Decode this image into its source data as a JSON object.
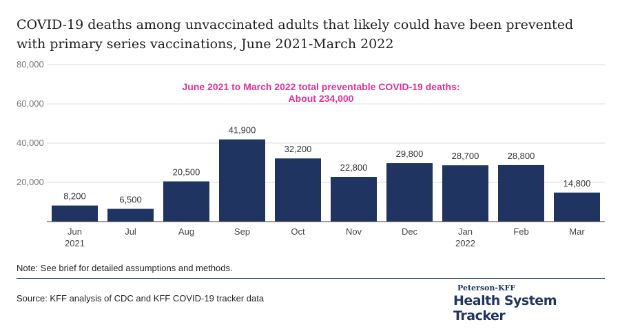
{
  "chart_data": {
    "type": "bar",
    "title": "COVID-19 deaths among unvaccinated adults that likely could have been prevented with primary series vaccinations, June 2021-March 2022",
    "categories": [
      "Jun",
      "Jul",
      "Aug",
      "Sep",
      "Oct",
      "Nov",
      "Dec",
      "Jan",
      "Feb",
      "Mar"
    ],
    "category_sublabels": [
      "2021",
      "",
      "",
      "",
      "",
      "",
      "",
      "2022",
      "",
      ""
    ],
    "values": [
      8200,
      6500,
      20500,
      41900,
      32200,
      22800,
      29800,
      28700,
      28800,
      14800
    ],
    "value_labels": [
      "8,200",
      "6,500",
      "20,500",
      "41,900",
      "32,200",
      "22,800",
      "29,800",
      "28,700",
      "28,800",
      "14,800"
    ],
    "ylim": [
      0,
      80000
    ],
    "yticks": [
      20000,
      40000,
      60000,
      80000
    ],
    "ytick_labels": [
      "20,000",
      "40,000",
      "60,000",
      "80,000"
    ],
    "grid": true,
    "bar_color": "#1f3460",
    "annotation": {
      "line1": "June 2021 to March 2022 total preventable COVID-19 deaths:",
      "line2": "About 234,000",
      "color": "#e0309a"
    }
  },
  "footer": {
    "note": "Note: See brief for detailed assumptions and methods.",
    "source": "Source: KFF analysis of CDC and KFF COVID-19 tracker data",
    "brand_top": "Peterson-KFF",
    "brand_main": "Health System Tracker"
  }
}
